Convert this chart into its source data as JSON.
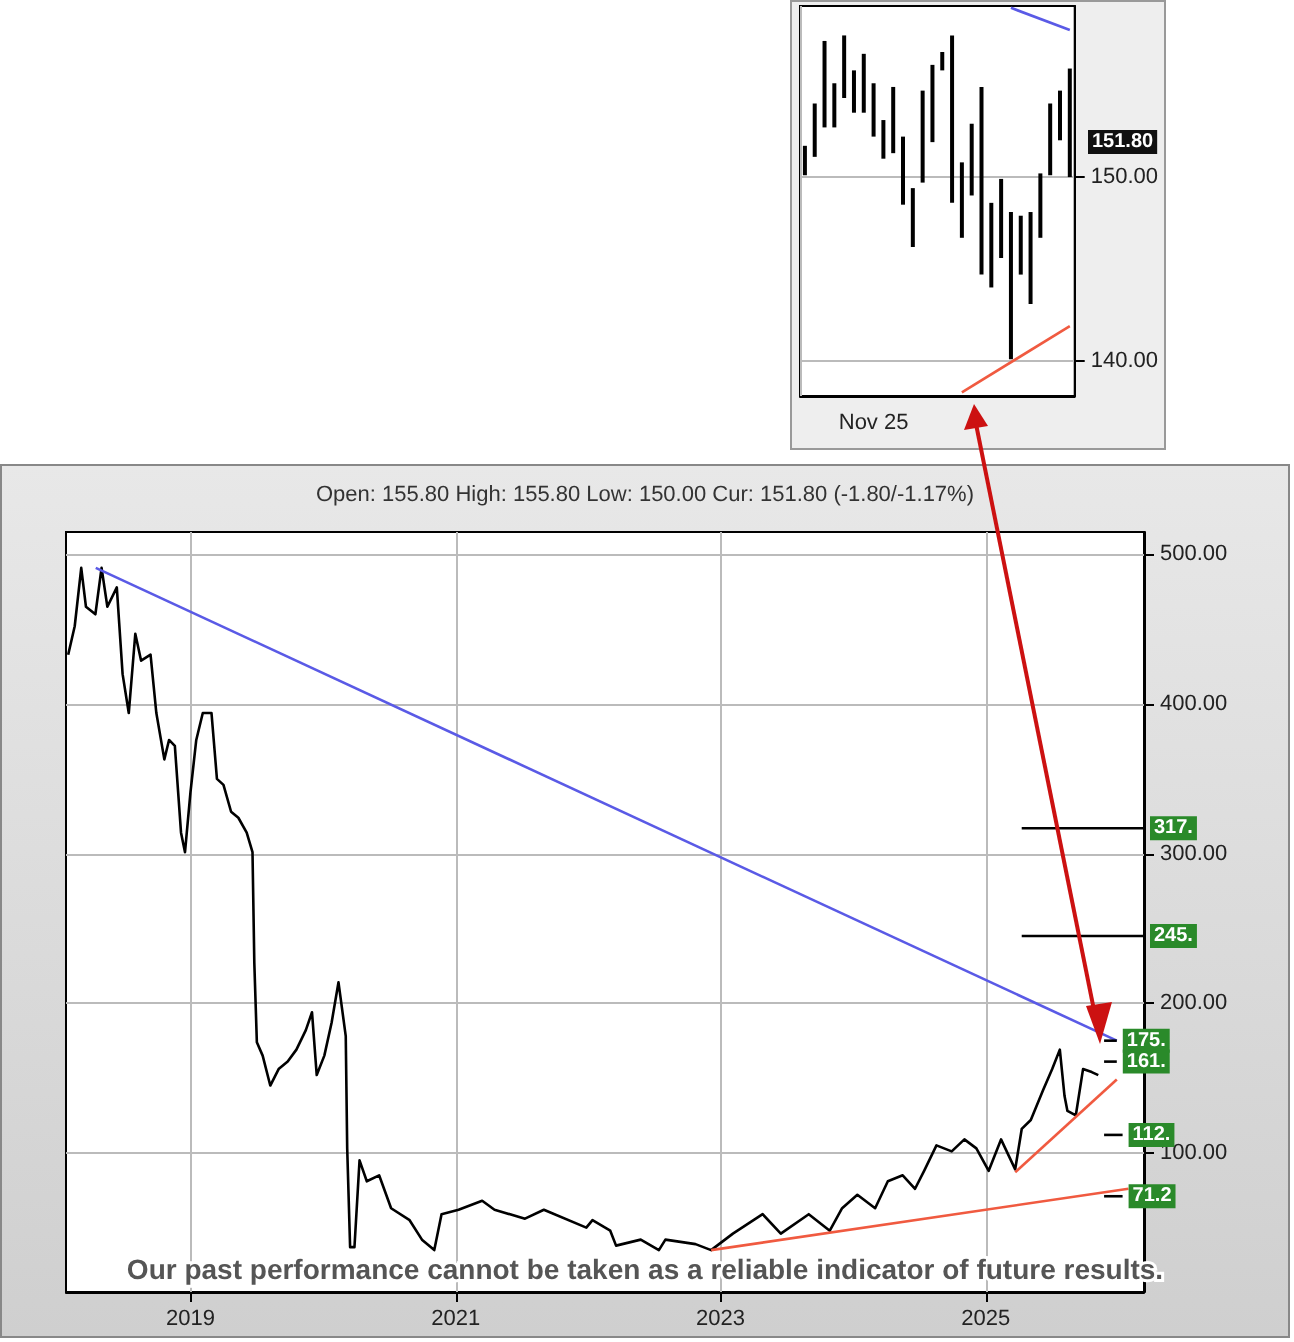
{
  "chart_data": [
    {
      "type": "bar",
      "categories": [
        null,
        null,
        null,
        null,
        null,
        null,
        null,
        "Nov 25",
        null,
        null,
        null,
        null,
        null,
        null,
        null,
        null,
        null,
        null,
        null,
        null,
        null,
        null,
        null,
        null,
        null,
        null,
        null,
        null
      ],
      "series": [
        {
          "color": "#000000",
          "base": [
            150.1,
            151.1,
            152.7,
            152.7,
            154.3,
            153.5,
            153.5,
            152.2,
            151.0,
            151.3,
            148.5,
            146.2,
            149.7,
            151.9,
            155.8,
            148.6,
            146.7,
            149.0,
            144.7,
            144.0,
            145.6,
            140.1,
            144.7,
            143.1,
            146.7,
            150.1,
            152.0,
            150.0
          ],
          "values": [
            1.6,
            2.9,
            4.7,
            2.4,
            3.4,
            2.3,
            3.2,
            2.9,
            2.1,
            3.6,
            3.7,
            3.2,
            5.0,
            4.2,
            1.0,
            9.1,
            4.1,
            3.9,
            10.2,
            4.6,
            4.3,
            8.0,
            3.2,
            5.0,
            3.5,
            3.9,
            2.7,
            5.9
          ]
        },
        {
          "type": "line",
          "color": "#5a5ae6",
          "values": [
            null,
            null,
            null,
            null,
            null,
            null,
            null,
            null,
            null,
            null,
            null,
            null,
            null,
            null,
            null,
            null,
            null,
            null,
            null,
            null,
            null,
            159.2,
            null,
            null,
            null,
            null,
            null,
            158.0
          ]
        },
        {
          "type": "line",
          "color": "#f05a40",
          "values": [
            null,
            null,
            null,
            null,
            null,
            null,
            null,
            null,
            null,
            null,
            null,
            null,
            null,
            null,
            null,
            null,
            138.3,
            null,
            null,
            null,
            null,
            null,
            null,
            null,
            null,
            null,
            null,
            141.9
          ]
        }
      ],
      "ylim": [
        138.1,
        159.3
      ],
      "yticks": [
        {
          "value": 140,
          "label": "140.00"
        },
        {
          "value": 150,
          "label": "150.00"
        }
      ],
      "grid": true,
      "annotations": [
        "151.80"
      ]
    },
    {
      "type": "line",
      "subtitle": "Open: 155.80 High: 155.80 Low: 150.00 Cur: 151.80 (-1.80/-1.17%)",
      "series": [
        {
          "color": "#000000",
          "x": [
            "2018-01-29",
            "2018-02-16",
            "2018-03-06",
            "2018-03-19",
            "2018-04-14",
            "2018-05-01",
            "2018-05-17",
            "2018-06-12",
            "2018-06-28",
            "2018-07-15",
            "2018-08-02",
            "2018-08-18",
            "2018-09-13",
            "2018-09-29",
            "2018-10-21",
            "2018-11-03",
            "2018-11-19",
            "2018-12-06",
            "2018-12-17",
            "2019-01-01",
            "2019-01-17",
            "2019-02-04",
            "2019-02-28",
            "2019-03-15",
            "2019-04-02",
            "2019-04-23",
            "2019-05-13",
            "2019-06-05",
            "2019-06-21",
            "2019-06-26",
            "2019-07-03",
            "2019-07-19",
            "2019-08-09",
            "2019-09-01",
            "2019-09-26",
            "2019-10-20",
            "2019-11-15",
            "2019-12-02",
            "2019-12-15",
            "2020-01-05",
            "2020-01-25",
            "2020-02-13",
            "2020-03-04",
            "2020-03-08",
            "2020-03-16",
            "2020-03-28",
            "2020-04-11",
            "2020-05-01",
            "2020-06-04",
            "2020-07-07",
            "2020-08-27",
            "2020-09-30",
            "2020-11-03",
            "2020-11-23",
            "2021-01-09",
            "2021-03-15",
            "2021-04-18",
            "2021-07-11",
            "2021-09-01",
            "2021-12-27",
            "2022-01-13",
            "2022-03-03",
            "2022-03-19",
            "2022-05-26",
            "2022-07-15",
            "2022-08-02",
            "2022-10-24",
            "2022-12-06",
            "2023-02-04",
            "2023-04-27",
            "2023-06-16",
            "2023-09-01",
            "2023-10-29",
            "2023-12-02",
            "2024-01-13",
            "2024-03-02",
            "2024-04-06",
            "2024-05-17",
            "2024-06-20",
            "2024-07-15",
            "2024-08-18",
            "2024-09-29",
            "2024-11-03",
            "2024-12-06",
            "2025-01-09",
            "2025-02-12",
            "2025-03-23",
            "2025-04-10",
            "2025-05-05",
            "2025-06-08",
            "2025-07-03",
            "2025-07-24",
            "2025-08-06",
            "2025-08-14",
            "2025-09-06",
            "2025-09-26",
            "2025-10-20",
            "2025-11-07"
          ],
          "values": [
            433,
            452,
            491,
            465,
            460,
            491,
            465,
            478,
            420,
            394,
            447,
            429,
            433,
            394,
            363,
            376,
            372,
            314,
            301,
            341,
            376,
            394,
            394,
            350,
            346,
            328,
            324,
            314,
            301,
            227,
            174,
            165,
            145,
            156,
            161,
            169,
            182,
            194,
            152,
            165,
            187,
            214,
            178,
            103,
            37,
            37,
            95,
            81,
            85,
            63,
            55,
            42,
            35,
            59,
            62,
            68,
            62,
            56,
            62,
            50,
            55,
            48,
            38,
            42,
            35,
            42,
            39,
            35,
            46,
            59,
            46,
            59,
            48,
            63,
            72,
            63,
            81,
            85,
            76,
            88,
            105,
            101,
            109,
            103,
            88,
            109,
            89,
            116,
            122,
            142,
            156,
            169,
            138,
            128,
            125,
            156,
            154,
            152
          ]
        },
        {
          "color": "#5a5ae6",
          "x": [
            "2018-04-15",
            "2025-12-28"
          ],
          "values": [
            491,
            175
          ]
        },
        {
          "color": "#f05a40",
          "x": [
            "2022-12-06",
            "2026-01-29"
          ],
          "values": [
            35,
            76
          ]
        },
        {
          "color": "#f05a40",
          "x": [
            "2025-03-23",
            "2025-12-28"
          ],
          "values": [
            87,
            149
          ]
        },
        {
          "color": "#000000",
          "x": [
            "2025-04-10",
            "2026-03-13"
          ],
          "values": [
            317,
            317
          ]
        },
        {
          "color": "#000000",
          "x": [
            "2025-04-10",
            "2026-03-13"
          ],
          "values": [
            245,
            245
          ]
        },
        {
          "color": "#000000",
          "x": [
            "2025-11-23",
            "2025-12-28"
          ],
          "values": [
            175,
            175
          ]
        },
        {
          "color": "#000000",
          "x": [
            "2025-11-23",
            "2025-12-28"
          ],
          "values": [
            161,
            161
          ]
        },
        {
          "color": "#000000",
          "x": [
            "2025-11-23",
            "2026-01-13"
          ],
          "values": [
            112,
            112
          ]
        },
        {
          "color": "#000000",
          "x": [
            "2025-11-23",
            "2026-01-13"
          ],
          "values": [
            71,
            71
          ]
        }
      ],
      "xlim": [
        "2018-01-23",
        "2026-03-13"
      ],
      "xticks": [
        "2019",
        "2021",
        "2023",
        "2025"
      ],
      "ylim": [
        7,
        515
      ],
      "yticks": [
        {
          "value": 100,
          "label": "100.00"
        },
        {
          "value": 200,
          "label": "200.00"
        },
        {
          "value": 300,
          "label": "300.00"
        },
        {
          "value": 400,
          "label": "400.00"
        },
        {
          "value": 500,
          "label": "500.00"
        }
      ],
      "grid": true,
      "annotations": [
        "Our past performance cannot be taken as a reliable indicator of future results.",
        {
          "text": "317.",
          "x": "2026-03-13",
          "y": 317
        },
        {
          "text": "245.",
          "x": "2026-03-13",
          "y": 245
        },
        {
          "text": "175.",
          "x": "2025-12-28",
          "y": 175
        },
        {
          "text": "161.",
          "x": "2025-12-28",
          "y": 161
        },
        {
          "text": "112.",
          "x": "2026-01-13",
          "y": 112
        },
        {
          "text": "71.2",
          "x": "2026-01-13",
          "y": 71
        }
      ]
    }
  ]
}
